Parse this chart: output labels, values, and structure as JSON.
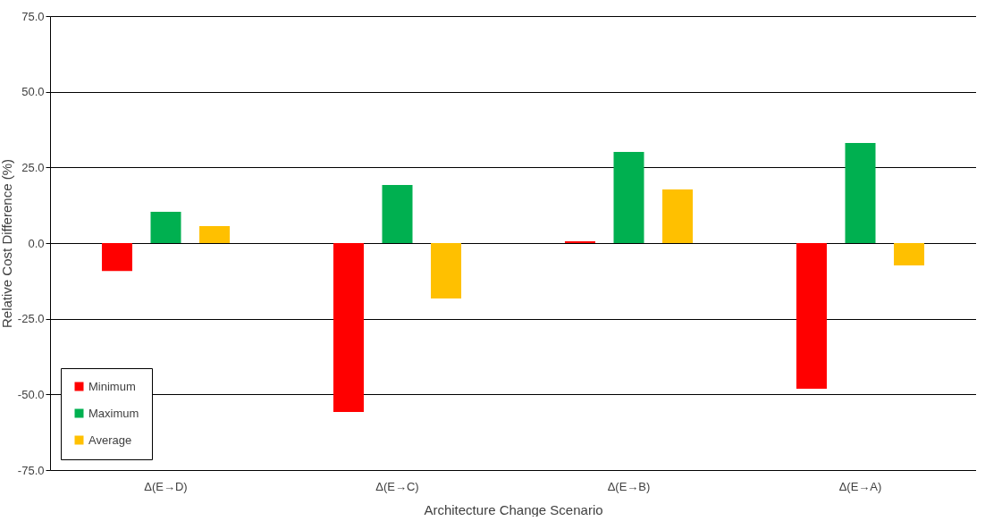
{
  "chart_data": {
    "type": "bar",
    "xlabel": "Architecture Change Scenario",
    "ylabel": "Relative Cost Difference (%)",
    "categories": [
      "Δ(E→D)",
      "Δ(E→C)",
      "Δ(E→B)",
      "Δ(E→A)"
    ],
    "series": [
      {
        "name": "Minimum",
        "color": "#ff0000",
        "values": [
          -9.2,
          -55.8,
          0.6,
          -48.1
        ]
      },
      {
        "name": "Maximum",
        "color": "#00b050",
        "values": [
          10.3,
          19.2,
          30.1,
          33.1
        ]
      },
      {
        "name": "Average",
        "color": "#ffc000",
        "values": [
          5.6,
          -18.3,
          17.7,
          -7.4
        ]
      }
    ],
    "ylim": [
      -75,
      75
    ],
    "yticks": [
      {
        "value": -75,
        "label": "-75.0"
      },
      {
        "value": -50,
        "label": "-50.0"
      },
      {
        "value": -25,
        "label": "-25.0"
      },
      {
        "value": 0,
        "label": "0.0"
      },
      {
        "value": 25,
        "label": "25.0"
      },
      {
        "value": 50,
        "label": "50.0"
      },
      {
        "value": 75,
        "label": "75.0"
      }
    ],
    "grid": "y",
    "legend": "bottom left"
  }
}
